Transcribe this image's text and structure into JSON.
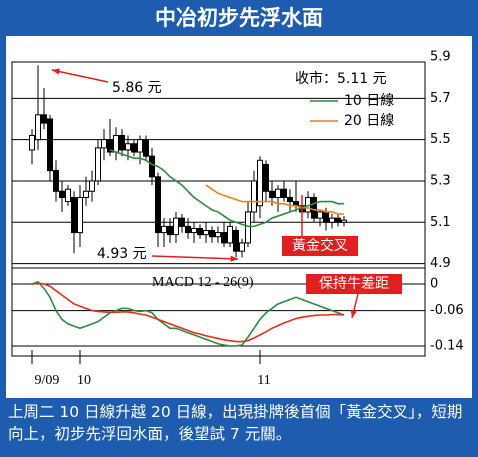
{
  "chart_data": [
    {
      "type": "candlestick",
      "title": "中冶初步先浮水面",
      "categories": [
        "9/09",
        null,
        null,
        null,
        null,
        null,
        null,
        null,
        "10",
        null,
        null,
        null,
        null,
        null,
        null,
        null,
        null,
        null,
        null,
        null,
        null,
        null,
        null,
        null,
        null,
        null,
        null,
        null,
        null,
        null,
        null,
        null,
        null,
        null,
        null,
        null,
        null,
        null,
        "11",
        null,
        null,
        null,
        null,
        null,
        null,
        null,
        null,
        null,
        null,
        null,
        null,
        null,
        null
      ],
      "open": [
        5.45,
        5.5,
        5.62,
        5.6,
        5.35,
        5.25,
        5.2,
        5.22,
        5.05,
        5.22,
        5.25,
        5.3,
        5.46,
        5.5,
        5.44,
        5.52,
        5.45,
        5.48,
        5.44,
        5.5,
        5.42,
        5.32,
        5.05,
        5.08,
        5.04,
        5.12,
        5.08,
        5.05,
        5.07,
        5.04,
        5.06,
        5.03,
        5.05,
        5.0,
        5.06,
        4.96,
        5.0,
        5.15,
        5.18,
        5.38,
        5.25,
        5.22,
        5.26,
        5.22,
        5.2,
        5.18,
        5.15,
        5.22,
        5.12,
        5.15,
        5.1,
        5.12,
        5.1
      ],
      "high": [
        5.55,
        5.86,
        5.75,
        5.62,
        5.4,
        5.3,
        5.28,
        5.25,
        5.28,
        5.32,
        5.35,
        5.5,
        5.55,
        5.6,
        5.56,
        5.55,
        5.52,
        5.5,
        5.52,
        5.52,
        5.46,
        5.34,
        5.12,
        5.12,
        5.15,
        5.14,
        5.12,
        5.1,
        5.09,
        5.1,
        5.08,
        5.08,
        5.1,
        5.1,
        5.08,
        5.02,
        5.2,
        5.35,
        5.42,
        5.4,
        5.3,
        5.28,
        5.3,
        5.26,
        5.3,
        5.22,
        5.25,
        5.24,
        5.16,
        5.17,
        5.14,
        5.14,
        5.13
      ],
      "low": [
        5.38,
        5.45,
        5.55,
        5.3,
        5.2,
        5.15,
        5.18,
        4.95,
        4.98,
        5.18,
        5.2,
        5.28,
        5.4,
        5.42,
        5.4,
        5.42,
        5.4,
        5.42,
        5.38,
        5.4,
        5.28,
        4.98,
        4.98,
        5.0,
        5.0,
        5.05,
        5.02,
        5.0,
        5.02,
        5.0,
        5.0,
        5.0,
        4.98,
        4.98,
        4.93,
        4.93,
        4.98,
        5.1,
        5.12,
        5.2,
        5.18,
        5.15,
        5.2,
        5.15,
        5.15,
        5.1,
        5.12,
        5.1,
        5.08,
        5.06,
        5.07,
        5.08,
        5.08
      ],
      "close": [
        5.52,
        5.62,
        5.58,
        5.35,
        5.25,
        5.22,
        5.26,
        5.05,
        5.22,
        5.25,
        5.3,
        5.46,
        5.5,
        5.44,
        5.52,
        5.45,
        5.48,
        5.44,
        5.5,
        5.42,
        5.32,
        5.05,
        5.08,
        5.04,
        5.12,
        5.08,
        5.05,
        5.07,
        5.04,
        5.06,
        5.03,
        5.05,
        5.0,
        5.08,
        4.96,
        5.0,
        5.15,
        5.3,
        5.4,
        5.25,
        5.22,
        5.26,
        5.22,
        5.2,
        5.18,
        5.15,
        5.22,
        5.12,
        5.15,
        5.1,
        5.12,
        5.1,
        5.11
      ],
      "series": [
        {
          "name": "10 日線",
          "color": "#2e8b3a",
          "values": [
            null,
            null,
            null,
            null,
            null,
            null,
            null,
            null,
            null,
            null,
            null,
            null,
            null,
            5.45,
            5.44,
            5.43,
            5.42,
            5.41,
            5.41,
            5.4,
            5.38,
            5.37,
            5.35,
            5.32,
            5.3,
            5.28,
            5.25,
            5.22,
            5.2,
            5.18,
            5.16,
            5.15,
            5.13,
            5.11,
            5.1,
            5.09,
            5.08,
            5.08,
            5.09,
            5.1,
            5.12,
            5.13,
            5.14,
            5.15,
            5.16,
            5.17,
            5.18,
            5.19,
            5.2,
            5.2,
            5.2,
            5.19,
            5.19
          ]
        },
        {
          "name": "20 日線",
          "color": "#e8821e",
          "values": [
            null,
            null,
            null,
            null,
            null,
            null,
            null,
            null,
            null,
            null,
            null,
            null,
            null,
            null,
            null,
            null,
            null,
            null,
            null,
            null,
            null,
            null,
            null,
            null,
            null,
            null,
            null,
            null,
            null,
            5.28,
            5.26,
            5.24,
            5.23,
            5.22,
            5.21,
            5.2,
            5.2,
            5.2,
            5.2,
            5.2,
            5.2,
            5.19,
            5.19,
            5.18,
            5.18,
            5.17,
            5.17,
            5.16,
            5.16,
            5.15,
            5.15,
            5.14,
            5.14
          ]
        }
      ],
      "ylim": [
        4.88,
        5.9
      ],
      "yticks": [
        4.9,
        5.1,
        5.3,
        5.5,
        5.7,
        5.9
      ],
      "grid": true,
      "annotations": [
        "5.86 元",
        "4.93 元",
        "收市：5.11 元",
        "黃金交叉"
      ]
    },
    {
      "type": "line",
      "title": "MACD 12 - 26(9)",
      "series": [
        {
          "color": "#2e8b3a",
          "values": [
            0,
            0.005,
            -0.01,
            -0.03,
            -0.06,
            -0.08,
            -0.09,
            -0.095,
            -0.1,
            -0.095,
            -0.09,
            -0.085,
            -0.075,
            -0.065,
            -0.06,
            -0.055,
            -0.055,
            -0.06,
            -0.062,
            -0.06,
            -0.065,
            -0.08,
            -0.09,
            -0.1,
            -0.1,
            -0.105,
            -0.11,
            -0.115,
            -0.12,
            -0.125,
            -0.13,
            -0.135,
            -0.138,
            -0.14,
            -0.14,
            -0.138,
            -0.12,
            -0.1,
            -0.08,
            -0.065,
            -0.055,
            -0.045,
            -0.04,
            -0.035,
            -0.03,
            -0.035,
            -0.04,
            -0.045,
            -0.05,
            -0.055,
            -0.06,
            -0.065,
            -0.07
          ]
        },
        {
          "color": "#e0301e",
          "values": [
            0,
            0.002,
            0,
            -0.005,
            -0.015,
            -0.025,
            -0.035,
            -0.045,
            -0.05,
            -0.055,
            -0.06,
            -0.062,
            -0.063,
            -0.064,
            -0.064,
            -0.063,
            -0.063,
            -0.065,
            -0.068,
            -0.07,
            -0.075,
            -0.08,
            -0.085,
            -0.09,
            -0.095,
            -0.1,
            -0.105,
            -0.11,
            -0.113,
            -0.117,
            -0.12,
            -0.123,
            -0.126,
            -0.128,
            -0.13,
            -0.13,
            -0.128,
            -0.122,
            -0.115,
            -0.108,
            -0.1,
            -0.094,
            -0.088,
            -0.083,
            -0.078,
            -0.075,
            -0.073,
            -0.071,
            -0.07,
            -0.07,
            -0.069,
            -0.069,
            -0.07
          ]
        }
      ],
      "ylim": [
        -0.15,
        0.015
      ],
      "yticks": [
        0,
        -0.06,
        -0.14
      ],
      "grid": true,
      "annotations": [
        "保持牛差距"
      ]
    }
  ],
  "caption": "上周二 10 日線升越 20 日線，出現掛牌後首個「黃金交叉」，短期向上，初步先浮回水面，後望試 7 元關。"
}
